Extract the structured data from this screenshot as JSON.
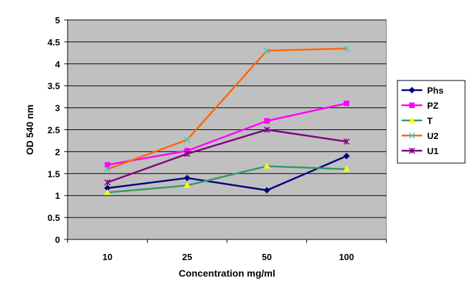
{
  "chart_data": {
    "type": "line",
    "categories": [
      "10",
      "25",
      "50",
      "100"
    ],
    "xlabel": "Concentration mg/ml",
    "ylabel": "OD 540 nm",
    "ylim": [
      0,
      5
    ],
    "yticks": [
      "0",
      "0.5",
      "1",
      "1.5",
      "2",
      "2.5",
      "3",
      "3.5",
      "4",
      "4.5",
      "5"
    ],
    "grid": true,
    "plot_background": "#c0c0c0",
    "legend_position": "right",
    "series": [
      {
        "name": "Phs",
        "values": [
          1.17,
          1.4,
          1.12,
          1.9
        ],
        "color": "#000080",
        "marker": "diamond"
      },
      {
        "name": "PZ",
        "values": [
          1.7,
          2.02,
          2.7,
          3.1
        ],
        "color": "#ff00ff",
        "marker": "square"
      },
      {
        "name": "T",
        "values": [
          1.07,
          1.23,
          1.67,
          1.6
        ],
        "color": "#339966",
        "marker": "triangle",
        "marker_color": "#ffff00"
      },
      {
        "name": "U2",
        "values": [
          1.6,
          2.27,
          4.3,
          4.35
        ],
        "color": "#ff6600",
        "marker": "x",
        "marker_color": "#33cccc"
      },
      {
        "name": "U1",
        "values": [
          1.3,
          1.95,
          2.5,
          2.23
        ],
        "color": "#800080",
        "marker": "star"
      }
    ]
  }
}
